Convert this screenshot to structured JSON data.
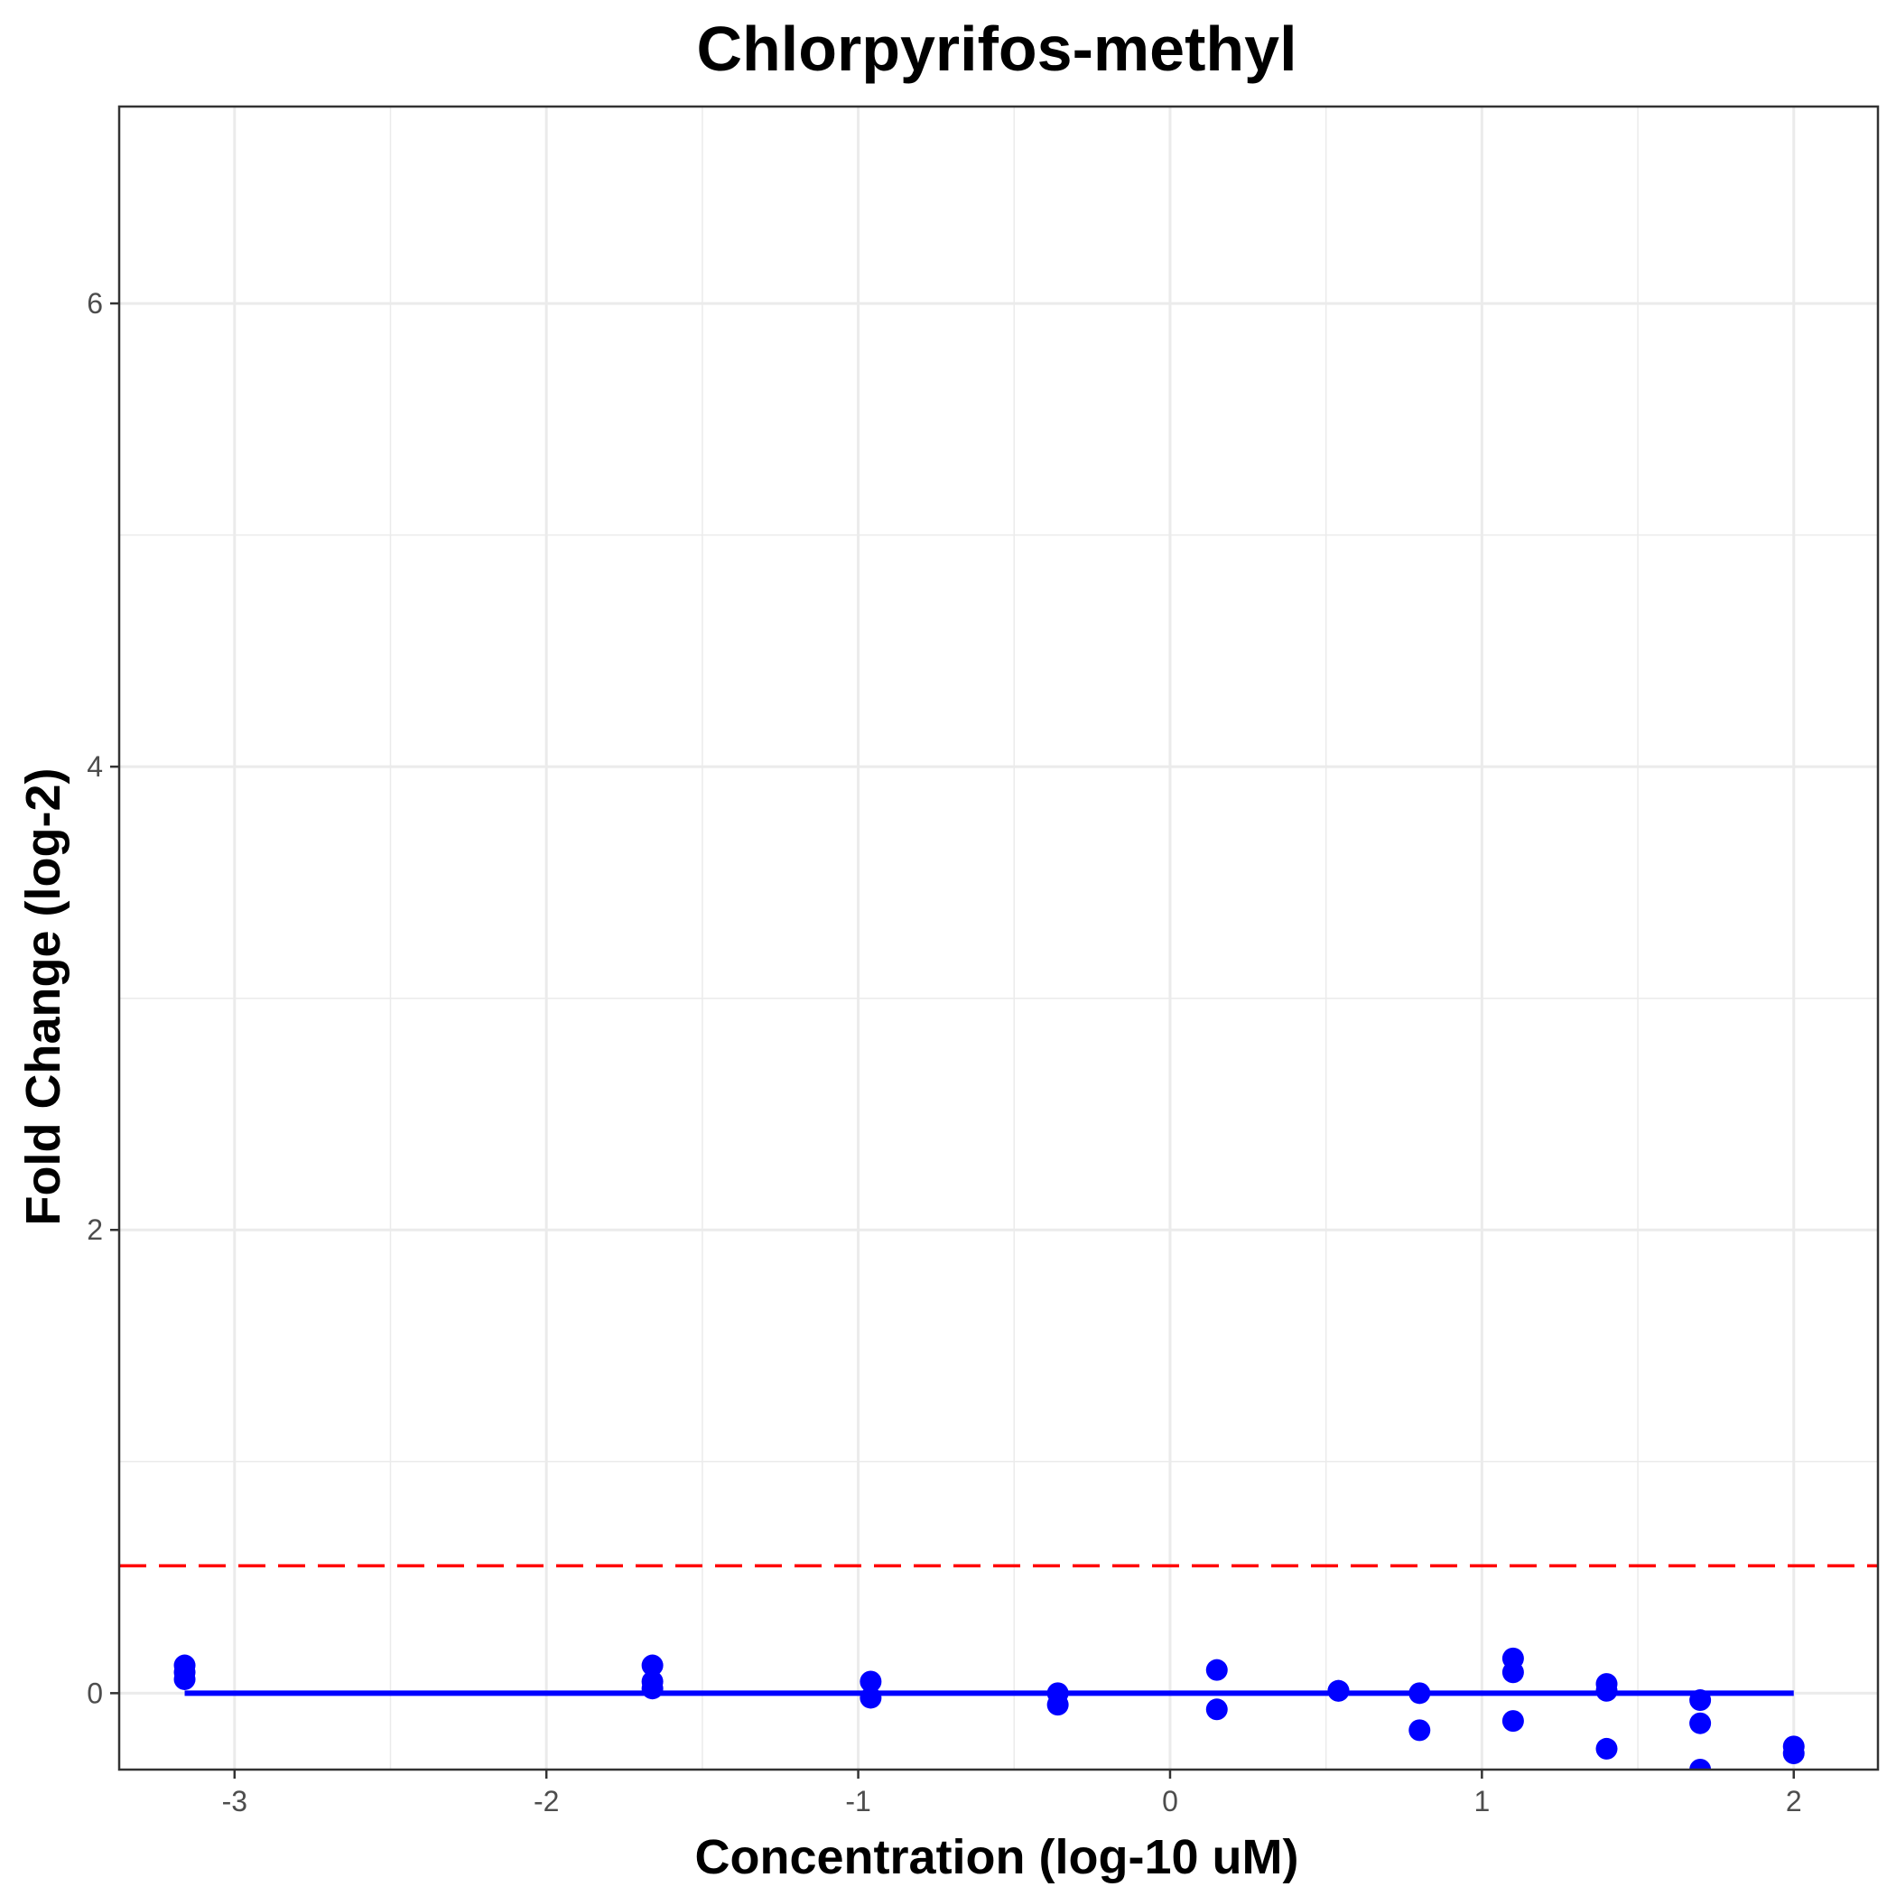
{
  "chart_data": {
    "type": "scatter",
    "title": "Chlorpyrifos-methyl",
    "xlabel": "Concentration (log-10 uM)",
    "ylabel": "Fold Change (log-2)",
    "xlim": [
      -3.37,
      2.27
    ],
    "ylim": [
      -0.33,
      6.85
    ],
    "x_ticks": [
      -3,
      -2,
      -1,
      0,
      1,
      2
    ],
    "x_tick_labels": [
      "-3",
      "-2",
      "-1",
      "0",
      "1",
      "2"
    ],
    "y_ticks": [
      0,
      2,
      4,
      6
    ],
    "y_tick_labels": [
      "0",
      "2",
      "4",
      "6"
    ],
    "x_minor_ticks": [
      -2.5,
      -1.5,
      -0.5,
      0.5,
      1.5
    ],
    "y_minor_ticks": [
      1,
      3,
      5
    ],
    "grid": true,
    "points": [
      {
        "x": -3.16,
        "y": 0.12
      },
      {
        "x": -3.16,
        "y": 0.09
      },
      {
        "x": -3.16,
        "y": 0.06
      },
      {
        "x": -1.66,
        "y": 0.12
      },
      {
        "x": -1.66,
        "y": 0.05
      },
      {
        "x": -1.66,
        "y": 0.02
      },
      {
        "x": -0.96,
        "y": 0.05
      },
      {
        "x": -0.96,
        "y": -0.02
      },
      {
        "x": -0.36,
        "y": 0.0
      },
      {
        "x": -0.36,
        "y": -0.05
      },
      {
        "x": 0.15,
        "y": 0.1
      },
      {
        "x": 0.15,
        "y": -0.07
      },
      {
        "x": 0.54,
        "y": 0.01
      },
      {
        "x": 0.54,
        "y": 0.01
      },
      {
        "x": 0.8,
        "y": 0.0
      },
      {
        "x": 0.8,
        "y": -0.16
      },
      {
        "x": 1.1,
        "y": 0.15
      },
      {
        "x": 1.1,
        "y": 0.09
      },
      {
        "x": 1.1,
        "y": -0.12
      },
      {
        "x": 1.4,
        "y": 0.04
      },
      {
        "x": 1.4,
        "y": 0.01
      },
      {
        "x": 1.4,
        "y": -0.24
      },
      {
        "x": 1.7,
        "y": -0.03
      },
      {
        "x": 1.7,
        "y": -0.13
      },
      {
        "x": 1.7,
        "y": -0.33
      },
      {
        "x": 2.0,
        "y": -0.23
      },
      {
        "x": 2.0,
        "y": -0.26
      }
    ],
    "fit_line": {
      "x": [
        -3.16,
        2.0
      ],
      "y": [
        0,
        0
      ]
    },
    "threshold": {
      "y": 0.55
    },
    "colors": {
      "points": "#0000ff",
      "fit": "#0000ff",
      "threshold": "#ff0000",
      "grid": "#ebebeb",
      "axis": "#333333"
    }
  }
}
